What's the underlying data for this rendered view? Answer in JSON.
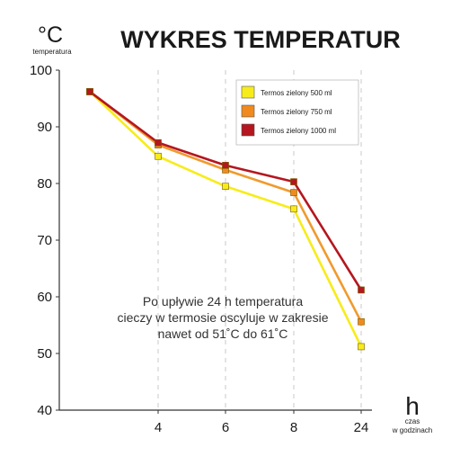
{
  "chart_data": {
    "type": "line",
    "title": "WYKRES TEMPERATUR",
    "y_unit_symbol": "°C",
    "y_unit_label": "temperatura",
    "x_unit_symbol": "h",
    "x_unit_label_line1": "czas",
    "x_unit_label_line2": "w godzinach",
    "categories": [
      "0",
      "4",
      "6",
      "8",
      "24"
    ],
    "x_tick_labels": [
      "",
      "4",
      "6",
      "8",
      "24"
    ],
    "y_ticks": [
      40,
      50,
      60,
      70,
      80,
      90,
      100
    ],
    "ylim": [
      40,
      100
    ],
    "grid": "vertical dashed at 4, 6, 8, 24",
    "legend_position": "top-right",
    "series": [
      {
        "name": "Termos zielony 500 ml",
        "color": "#f7ec1a",
        "marker_color": "#f7ec1a",
        "values": [
          96.2,
          84.8,
          79.5,
          75.5,
          51.2
        ]
      },
      {
        "name": "Termos zielony 750 ml",
        "color": "#f09a2e",
        "marker_color": "#f08a1e",
        "values": [
          96.2,
          86.8,
          82.4,
          78.4,
          55.6
        ]
      },
      {
        "name": "Termos zielony 1000 ml",
        "color": "#b5161f",
        "marker_color": "#b5161f",
        "values": [
          96.2,
          87.2,
          83.2,
          80.3,
          61.2
        ]
      }
    ],
    "annotation_lines": [
      "Po upływie 24 h temperatura",
      "cieczy w termosie oscyluje w zakresie",
      "nawet od 51˚C do 61˚C"
    ]
  }
}
